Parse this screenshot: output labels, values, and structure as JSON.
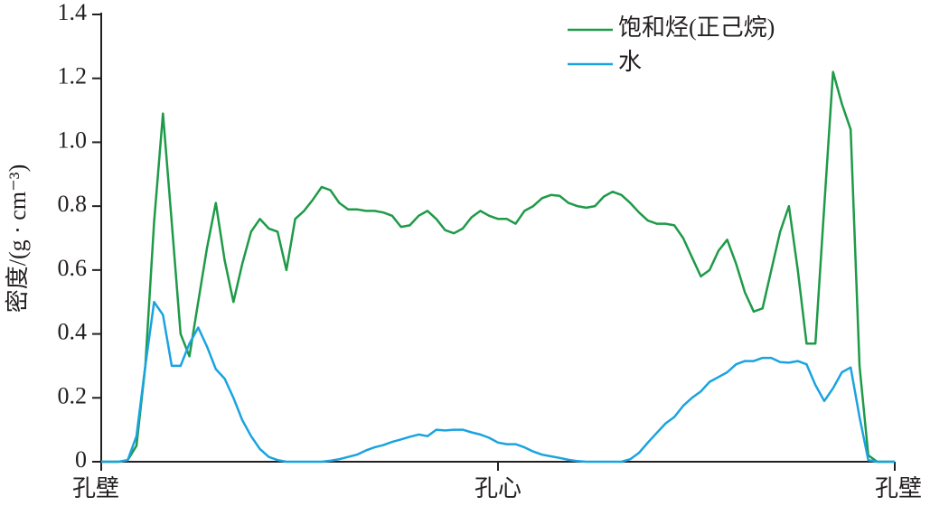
{
  "chart_data": {
    "type": "line",
    "y_label": "密度/(g · cm⁻³)",
    "categories": [
      "孔壁",
      null,
      null,
      null,
      null,
      null,
      null,
      null,
      null,
      null,
      null,
      null,
      null,
      null,
      null,
      null,
      null,
      null,
      null,
      null,
      null,
      null,
      null,
      null,
      null,
      null,
      null,
      null,
      null,
      null,
      null,
      null,
      null,
      null,
      null,
      null,
      null,
      null,
      null,
      null,
      null,
      null,
      null,
      null,
      null,
      "孔心",
      null,
      null,
      null,
      null,
      null,
      null,
      null,
      null,
      null,
      null,
      null,
      null,
      null,
      null,
      null,
      null,
      null,
      null,
      null,
      null,
      null,
      null,
      null,
      null,
      null,
      null,
      null,
      null,
      null,
      null,
      null,
      null,
      null,
      null,
      null,
      null,
      null,
      null,
      null,
      null,
      null,
      null,
      null,
      null,
      "孔壁"
    ],
    "series": [
      {
        "name": "饱和烃(正己烷)",
        "color": "#1e9a48",
        "values": [
          0,
          0,
          0,
          0.005,
          0.05,
          0.3,
          0.75,
          1.09,
          0.75,
          0.4,
          0.33,
          0.5,
          0.67,
          0.81,
          0.63,
          0.5,
          0.62,
          0.72,
          0.76,
          0.73,
          0.72,
          0.6,
          0.76,
          0.785,
          0.82,
          0.86,
          0.85,
          0.81,
          0.79,
          0.79,
          0.785,
          0.785,
          0.78,
          0.77,
          0.735,
          0.74,
          0.77,
          0.785,
          0.76,
          0.725,
          0.715,
          0.73,
          0.765,
          0.785,
          0.77,
          0.76,
          0.76,
          0.745,
          0.785,
          0.8,
          0.825,
          0.835,
          0.832,
          0.81,
          0.8,
          0.795,
          0.8,
          0.83,
          0.845,
          0.835,
          0.81,
          0.78,
          0.755,
          0.745,
          0.745,
          0.74,
          0.7,
          0.64,
          0.58,
          0.6,
          0.66,
          0.695,
          0.62,
          0.53,
          0.47,
          0.48,
          0.6,
          0.72,
          0.8,
          0.6,
          0.37,
          0.37,
          0.8,
          1.22,
          1.12,
          1.04,
          0.3,
          0.02,
          0,
          0,
          0
        ]
      },
      {
        "name": "水",
        "color": "#1aa3e0",
        "values": [
          0,
          0,
          0,
          0.005,
          0.08,
          0.3,
          0.5,
          0.46,
          0.3,
          0.3,
          0.37,
          0.42,
          0.36,
          0.29,
          0.26,
          0.2,
          0.13,
          0.08,
          0.04,
          0.015,
          0.005,
          0,
          0,
          0,
          0,
          0,
          0.003,
          0.008,
          0.015,
          0.022,
          0.035,
          0.045,
          0.052,
          0.062,
          0.07,
          0.078,
          0.085,
          0.08,
          0.1,
          0.098,
          0.1,
          0.1,
          0.092,
          0.085,
          0.075,
          0.06,
          0.055,
          0.055,
          0.045,
          0.032,
          0.022,
          0.017,
          0.012,
          0.006,
          0.002,
          0,
          0,
          0,
          0,
          0,
          0.008,
          0.028,
          0.06,
          0.09,
          0.12,
          0.14,
          0.175,
          0.2,
          0.22,
          0.25,
          0.265,
          0.28,
          0.305,
          0.315,
          0.315,
          0.325,
          0.325,
          0.312,
          0.31,
          0.315,
          0.305,
          0.24,
          0.19,
          0.23,
          0.28,
          0.295,
          0.14,
          0.005,
          0,
          0,
          0
        ]
      }
    ],
    "ylim": [
      0,
      1.4
    ],
    "yticks": [
      0,
      0.2,
      0.4,
      0.6,
      0.8,
      {
        "value": 1,
        "label": "1.0"
      },
      1.2,
      1.4
    ],
    "legend": "top-right"
  }
}
